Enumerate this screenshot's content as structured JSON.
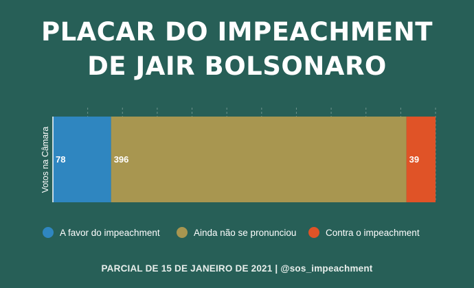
{
  "title_line1": "PLACAR DO IMPEACHMENT",
  "title_line2": "DE JAIR BOLSONARO",
  "footer": "PARCIAL DE 15 DE JANEIRO DE 2021 | @sos_impeachment",
  "colors": {
    "background": "#275f57",
    "favor": "#2f86c0",
    "undeclared": "#a89650",
    "against": "#e05327"
  },
  "chart_data": {
    "type": "bar",
    "orientation": "horizontal",
    "stacked": true,
    "categories": [
      "Votos na Câmara"
    ],
    "ylabel": "Votos na Câmara",
    "series": [
      {
        "name": "A favor do impeachment",
        "values": [
          78
        ],
        "color": "#2f86c0"
      },
      {
        "name": "Ainda não se pronunciou",
        "values": [
          396
        ],
        "color": "#a89650"
      },
      {
        "name": "Contra o impeachment",
        "values": [
          39
        ],
        "color": "#e05327"
      }
    ],
    "xlim": [
      0,
      513
    ],
    "grid": true,
    "legend": "bottom",
    "data_labels": [
      "78",
      "396",
      "39"
    ]
  }
}
